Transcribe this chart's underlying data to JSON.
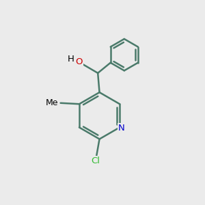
{
  "background_color": "#ebebeb",
  "bond_color": "#4a7a6a",
  "bond_width": 1.8,
  "atom_labels": {
    "O": {
      "color": "#cc0000",
      "fontsize": 9.5
    },
    "H": {
      "color": "#000000",
      "fontsize": 9.5
    },
    "N": {
      "color": "#0000cc",
      "fontsize": 9.5
    },
    "Cl": {
      "color": "#33bb33",
      "fontsize": 9.5
    },
    "Me": {
      "color": "#000000",
      "fontsize": 9.0
    }
  },
  "figsize": [
    3.0,
    3.0
  ],
  "dpi": 100,
  "xlim": [
    0,
    10
  ],
  "ylim": [
    0,
    10
  ]
}
